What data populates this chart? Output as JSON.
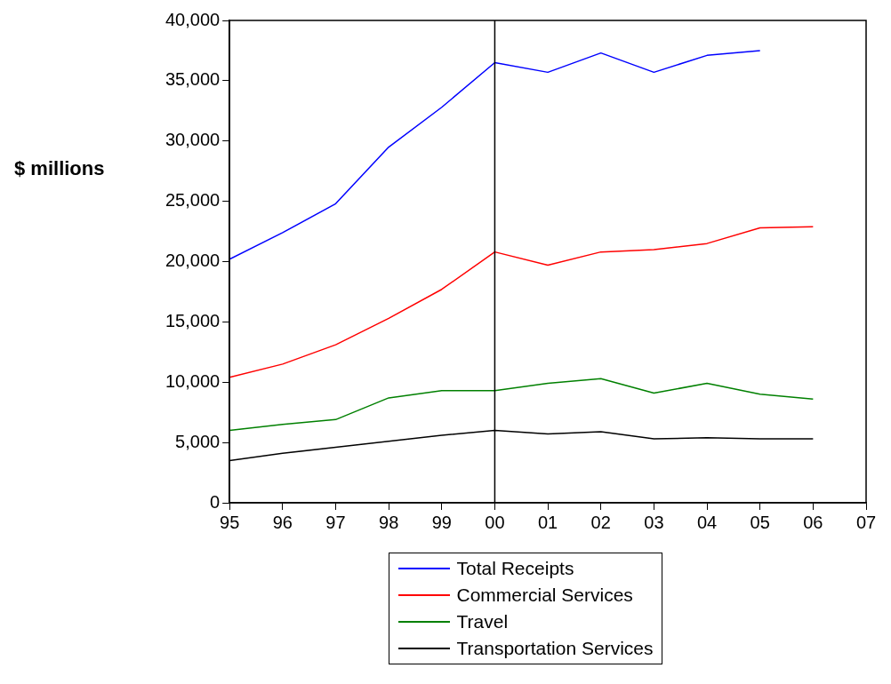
{
  "chart_data": {
    "type": "line",
    "ylabel": "$ millions",
    "x": [
      1995,
      1996,
      1997,
      1998,
      1999,
      2000,
      2001,
      2002,
      2003,
      2004,
      2005,
      2006
    ],
    "series": [
      {
        "name": "Total Receipts",
        "color": "#0000ff",
        "values": [
          20200,
          22400,
          24800,
          29500,
          32800,
          36500,
          35700,
          37300,
          35700,
          37100,
          37500,
          null
        ]
      },
      {
        "name": "Commercial Services",
        "color": "#ff0000",
        "values": [
          10400,
          11500,
          13100,
          15300,
          17700,
          20800,
          19700,
          20800,
          21000,
          21500,
          22800,
          22900
        ]
      },
      {
        "name": "Travel",
        "color": "#008000",
        "values": [
          6000,
          6500,
          6900,
          8700,
          9300,
          9300,
          9900,
          10300,
          9100,
          9900,
          9000,
          8600
        ]
      },
      {
        "name": "Transportation Services",
        "color": "#000000",
        "values": [
          3500,
          4100,
          4600,
          5100,
          5600,
          6000,
          5700,
          5900,
          5300,
          5400,
          5300,
          5300
        ]
      }
    ],
    "xlim": [
      1995,
      2007
    ],
    "xticks": [
      {
        "value": 1995,
        "label": "95"
      },
      {
        "value": 1996,
        "label": "96"
      },
      {
        "value": 1997,
        "label": "97"
      },
      {
        "value": 1998,
        "label": "98"
      },
      {
        "value": 1999,
        "label": "99"
      },
      {
        "value": 2000,
        "label": "00"
      },
      {
        "value": 2001,
        "label": "01"
      },
      {
        "value": 2002,
        "label": "02"
      },
      {
        "value": 2003,
        "label": "03"
      },
      {
        "value": 2004,
        "label": "04"
      },
      {
        "value": 2005,
        "label": "05"
      },
      {
        "value": 2006,
        "label": "06"
      },
      {
        "value": 2007,
        "label": "07"
      }
    ],
    "ylim": [
      0,
      40000
    ],
    "yticks": [
      {
        "value": 0,
        "label": "0"
      },
      {
        "value": 5000,
        "label": "5,000"
      },
      {
        "value": 10000,
        "label": "10,000"
      },
      {
        "value": 15000,
        "label": "15,000"
      },
      {
        "value": 20000,
        "label": "20,000"
      },
      {
        "value": 25000,
        "label": "25,000"
      },
      {
        "value": 30000,
        "label": "30,000"
      },
      {
        "value": 35000,
        "label": "35,000"
      },
      {
        "value": 40000,
        "label": "40,000"
      }
    ],
    "ref_lines": [
      {
        "axis": "x",
        "value": 2000,
        "color": "#000000"
      }
    ],
    "grid": false,
    "legend": "bottom",
    "marker": "none",
    "line_style": "solid"
  }
}
